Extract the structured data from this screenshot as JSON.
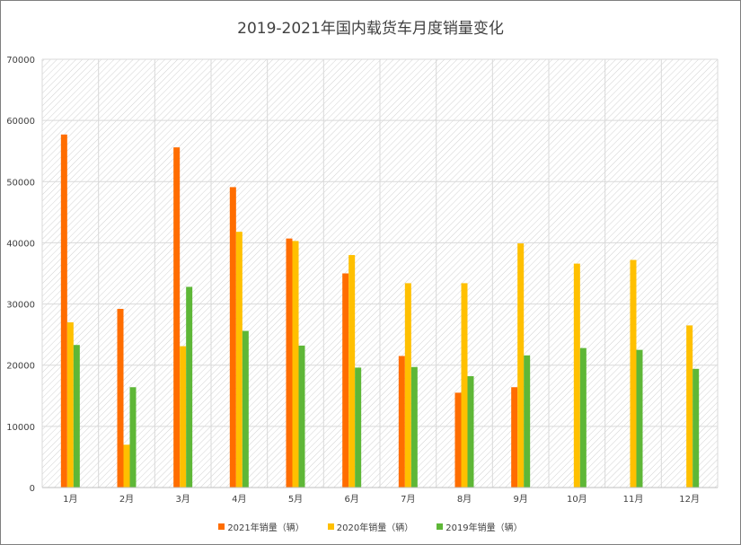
{
  "chart_data": {
    "type": "bar",
    "title": "2019-2021年国内载货车月度销量变化",
    "categories": [
      "1月",
      "2月",
      "3月",
      "4月",
      "5月",
      "6月",
      "7月",
      "8月",
      "9月",
      "10月",
      "11月",
      "12月"
    ],
    "series": [
      {
        "name": "2021年销量（辆）",
        "color": "#ff6d00",
        "values": [
          57700,
          29200,
          55600,
          49100,
          40700,
          35000,
          21500,
          15500,
          16400,
          null,
          null,
          null
        ]
      },
      {
        "name": "2020年销量（辆）",
        "color": "#ffc000",
        "values": [
          27000,
          7000,
          23100,
          41800,
          40300,
          38000,
          33400,
          33400,
          39900,
          36600,
          37200,
          26500
        ]
      },
      {
        "name": "2019年销量（辆）",
        "color": "#5eb737",
        "values": [
          23300,
          16400,
          32800,
          25600,
          23200,
          19600,
          19700,
          18200,
          21600,
          22800,
          22500,
          19400
        ]
      }
    ],
    "ylim": [
      0,
      70000
    ],
    "yticks": [
      0,
      10000,
      20000,
      30000,
      40000,
      50000,
      60000,
      70000
    ],
    "yticks_labels": [
      "0",
      "10000",
      "20000",
      "30000",
      "40000",
      "50000",
      "60000",
      "70000"
    ],
    "xlabel": "",
    "ylabel": "",
    "grid": true,
    "legend": "bottom"
  }
}
